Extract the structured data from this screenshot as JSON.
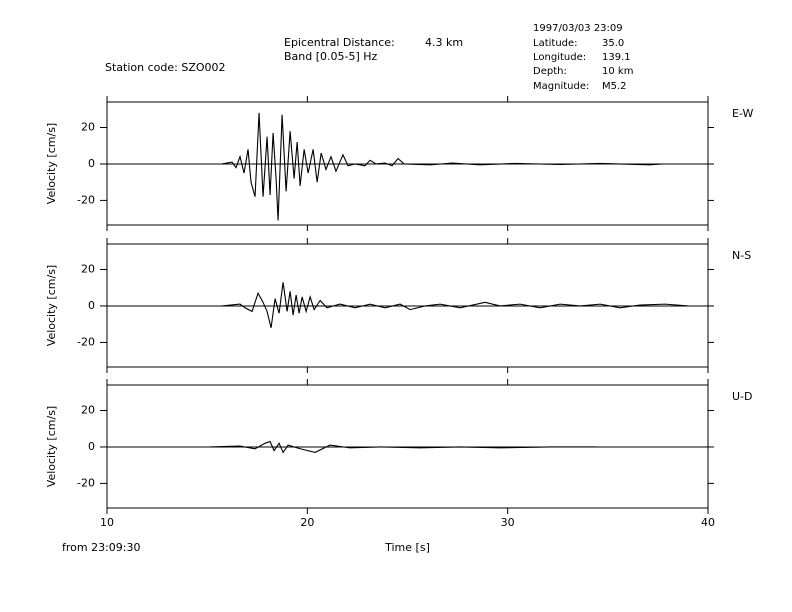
{
  "header": {
    "station": "Station code: SZO002",
    "distance_label": "Epicentral Distance:",
    "distance": "4.3 km",
    "band": "Band [0.05-5] Hz",
    "datetime": "1997/03/03 23:09",
    "params": [
      [
        "Latitude:",
        "35.0"
      ],
      [
        "Longitude:",
        "139.1"
      ],
      [
        "Depth:",
        "10 km"
      ],
      [
        "Magnitude:",
        "M5.2"
      ]
    ]
  },
  "chart_data": [
    {
      "type": "line",
      "label": "E-W",
      "y_label": "Velocity [cm/s]",
      "color": "#000000",
      "x": [
        15.74,
        16.24,
        16.44,
        16.64,
        16.84,
        17.04,
        17.19,
        17.39,
        17.59,
        17.79,
        17.99,
        18.14,
        18.29,
        18.44,
        18.54,
        18.74,
        18.94,
        19.14,
        19.34,
        19.49,
        19.64,
        19.84,
        20.04,
        20.29,
        20.49,
        20.69,
        20.93,
        21.18,
        21.43,
        21.78,
        22.03,
        22.38,
        22.88,
        23.13,
        23.43,
        23.88,
        24.23,
        24.53,
        24.83,
        26.13,
        27.23,
        28.62,
        30.37,
        32.62,
        34.62,
        37.11,
        37.71
      ],
      "values": [
        0,
        1,
        -2,
        4,
        -5,
        8,
        -10,
        -18,
        28,
        -18,
        15,
        -17,
        17,
        -8,
        -31,
        27,
        -15,
        18,
        -8,
        12,
        -12,
        8,
        -5,
        8,
        -10,
        6,
        -3,
        4,
        -4,
        5,
        -1,
        0,
        -1,
        2,
        0,
        0.5,
        -1,
        3,
        0,
        -0.5,
        0.5,
        -0.5,
        0.3,
        -0.3,
        0.3,
        -0.5,
        0
      ],
      "xlim": [
        10,
        40
      ],
      "ylim": [
        -33.5,
        34
      ],
      "xticks": [
        10,
        20,
        30,
        40
      ],
      "yticks": [
        -20,
        0,
        20
      ]
    },
    {
      "type": "line",
      "label": "N-S",
      "y_label": "Velocity [cm/s]",
      "color": "#000000",
      "x": [
        15.74,
        16.64,
        16.89,
        17.24,
        17.54,
        17.79,
        17.99,
        18.19,
        18.39,
        18.59,
        18.79,
        18.99,
        19.14,
        19.29,
        19.44,
        19.59,
        19.74,
        19.94,
        20.14,
        20.34,
        20.64,
        20.98,
        21.63,
        22.38,
        23.13,
        23.88,
        24.63,
        25.13,
        25.88,
        26.63,
        27.63,
        28.87,
        29.62,
        30.62,
        31.62,
        32.62,
        33.62,
        34.62,
        35.61,
        36.61,
        37.86,
        39.01
      ],
      "values": [
        0,
        1,
        -1,
        -3,
        7,
        2,
        -3,
        -12,
        4,
        -4,
        13,
        -3,
        8,
        -5,
        6,
        -4,
        5,
        -3,
        5,
        -2,
        3,
        -1,
        1,
        -1,
        1,
        -1,
        1,
        -2,
        0,
        1,
        -1,
        2,
        0,
        1,
        -1,
        1,
        0,
        1,
        -1,
        0.5,
        1,
        0
      ],
      "xlim": [
        10,
        40
      ],
      "ylim": [
        -33.5,
        34
      ],
      "xticks": [
        10,
        20,
        30,
        40
      ],
      "yticks": [
        -20,
        0,
        20
      ]
    },
    {
      "type": "line",
      "label": "U-D",
      "y_label": "Velocity [cm/s]",
      "x_label": "Time [s]",
      "x_origin": "from 23:09:30",
      "color": "#000000",
      "x": [
        15.14,
        16.64,
        17.39,
        17.89,
        18.14,
        18.34,
        18.59,
        18.79,
        19.04,
        19.64,
        20.39,
        21.13,
        22.13,
        23.63,
        25.63,
        27.63,
        29.62,
        32.12,
        34.42
      ],
      "values": [
        0,
        0.5,
        -1,
        2,
        3,
        -2,
        2,
        -3,
        1,
        -1,
        -3,
        1,
        -0.5,
        0,
        -0.5,
        0,
        -0.5,
        0,
        0
      ],
      "xlim": [
        10,
        40
      ],
      "ylim": [
        -33.5,
        34
      ],
      "xticks": [
        10,
        20,
        30,
        40
      ],
      "yticks": [
        -20,
        0,
        20
      ]
    }
  ]
}
